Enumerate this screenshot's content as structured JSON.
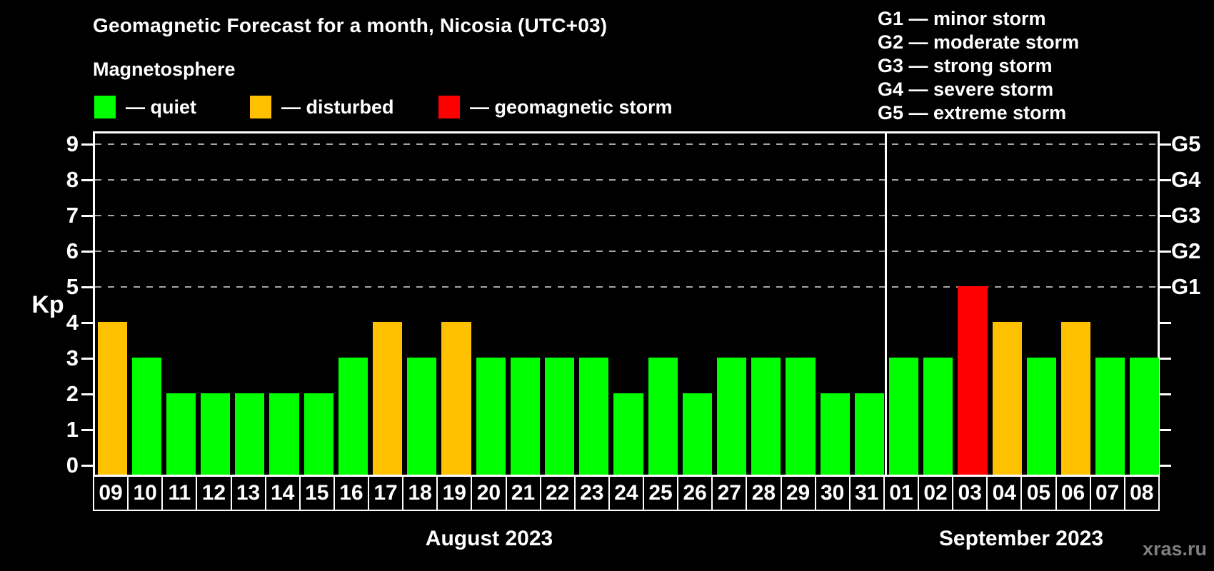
{
  "title": "Geomagnetic Forecast for a month, Nicosia (UTC+03)",
  "subtitle": "Magnetosphere",
  "status_legend": [
    {
      "name": "quiet",
      "color": "#00ff00",
      "label": "— quiet"
    },
    {
      "name": "disturbed",
      "color": "#ffc000",
      "label": "— disturbed"
    },
    {
      "name": "storm",
      "color": "#ff0000",
      "label": "— geomagnetic storm"
    }
  ],
  "g_legend": [
    {
      "label": "G1 — minor storm"
    },
    {
      "label": "G2 — moderate storm"
    },
    {
      "label": "G3 — strong storm"
    },
    {
      "label": "G4 — severe storm"
    },
    {
      "label": "G5 — extreme storm"
    }
  ],
  "watermark": "xras.ru",
  "chart_data": {
    "type": "bar",
    "title": "Geomagnetic Forecast for a month, Nicosia (UTC+03)",
    "ylabel": "Kp",
    "ylim": [
      0,
      9
    ],
    "yticks": [
      0,
      1,
      2,
      3,
      4,
      5,
      6,
      7,
      8,
      9
    ],
    "gridlines_at": [
      5,
      6,
      7,
      8,
      9
    ],
    "grid": "dashed-horizontal",
    "right_axis_labels": [
      {
        "label": "G1",
        "level": 5
      },
      {
        "label": "G2",
        "level": 6
      },
      {
        "label": "G3",
        "level": 7
      },
      {
        "label": "G4",
        "level": 8
      },
      {
        "label": "G5",
        "level": 9
      }
    ],
    "status_colors": {
      "quiet": "#00ff00",
      "disturbed": "#ffc000",
      "storm": "#ff0000"
    },
    "months": [
      {
        "label": "August 2023",
        "start_index": 0,
        "count": 23
      },
      {
        "label": "September 2023",
        "start_index": 23,
        "count": 8
      }
    ],
    "bars": [
      {
        "day": "09",
        "month": "August 2023",
        "value": 4,
        "status": "disturbed"
      },
      {
        "day": "10",
        "month": "August 2023",
        "value": 3,
        "status": "quiet"
      },
      {
        "day": "11",
        "month": "August 2023",
        "value": 2,
        "status": "quiet"
      },
      {
        "day": "12",
        "month": "August 2023",
        "value": 2,
        "status": "quiet"
      },
      {
        "day": "13",
        "month": "August 2023",
        "value": 2,
        "status": "quiet"
      },
      {
        "day": "14",
        "month": "August 2023",
        "value": 2,
        "status": "quiet"
      },
      {
        "day": "15",
        "month": "August 2023",
        "value": 2,
        "status": "quiet"
      },
      {
        "day": "16",
        "month": "August 2023",
        "value": 3,
        "status": "quiet"
      },
      {
        "day": "17",
        "month": "August 2023",
        "value": 4,
        "status": "disturbed"
      },
      {
        "day": "18",
        "month": "August 2023",
        "value": 3,
        "status": "quiet"
      },
      {
        "day": "19",
        "month": "August 2023",
        "value": 4,
        "status": "disturbed"
      },
      {
        "day": "20",
        "month": "August 2023",
        "value": 3,
        "status": "quiet"
      },
      {
        "day": "21",
        "month": "August 2023",
        "value": 3,
        "status": "quiet"
      },
      {
        "day": "22",
        "month": "August 2023",
        "value": 3,
        "status": "quiet"
      },
      {
        "day": "23",
        "month": "August 2023",
        "value": 3,
        "status": "quiet"
      },
      {
        "day": "24",
        "month": "August 2023",
        "value": 2,
        "status": "quiet"
      },
      {
        "day": "25",
        "month": "August 2023",
        "value": 3,
        "status": "quiet"
      },
      {
        "day": "26",
        "month": "August 2023",
        "value": 2,
        "status": "quiet"
      },
      {
        "day": "27",
        "month": "August 2023",
        "value": 3,
        "status": "quiet"
      },
      {
        "day": "28",
        "month": "August 2023",
        "value": 3,
        "status": "quiet"
      },
      {
        "day": "29",
        "month": "August 2023",
        "value": 3,
        "status": "quiet"
      },
      {
        "day": "30",
        "month": "August 2023",
        "value": 2,
        "status": "quiet"
      },
      {
        "day": "31",
        "month": "August 2023",
        "value": 2,
        "status": "quiet"
      },
      {
        "day": "01",
        "month": "September 2023",
        "value": 3,
        "status": "quiet"
      },
      {
        "day": "02",
        "month": "September 2023",
        "value": 3,
        "status": "quiet"
      },
      {
        "day": "03",
        "month": "September 2023",
        "value": 5,
        "status": "storm"
      },
      {
        "day": "04",
        "month": "September 2023",
        "value": 4,
        "status": "disturbed"
      },
      {
        "day": "05",
        "month": "September 2023",
        "value": 3,
        "status": "quiet"
      },
      {
        "day": "06",
        "month": "September 2023",
        "value": 4,
        "status": "disturbed"
      },
      {
        "day": "07",
        "month": "September 2023",
        "value": 3,
        "status": "quiet"
      },
      {
        "day": "08",
        "month": "September 2023",
        "value": 3,
        "status": "quiet"
      }
    ]
  }
}
